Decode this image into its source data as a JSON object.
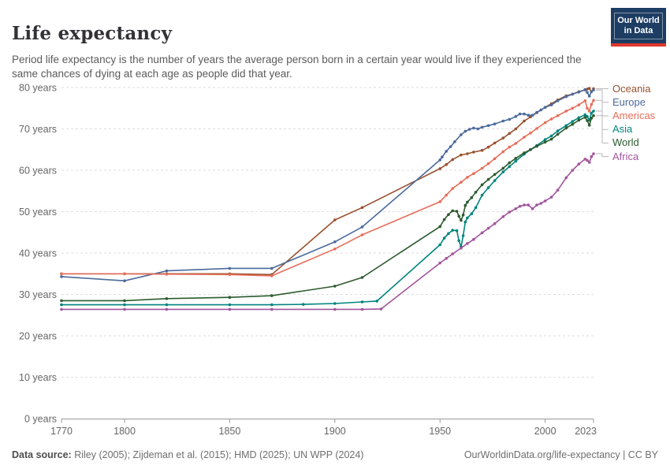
{
  "header": {
    "title": "Life expectancy",
    "subtitle": "Period life expectancy is the number of years the average person born in a certain year would live if they experienced the same chances of dying at each age as people did that year.",
    "logo": {
      "line1": "Our World",
      "line2": "in Data",
      "bg_color": "#1d3d63",
      "bar_color": "#e0362c"
    }
  },
  "footer": {
    "datasource_label": "Data source:",
    "datasource_value": " Riley (2005); Zijdeman et al. (2015); HMD (2025); UN WPP (2024)",
    "link": "OurWorldinData.org/life-expectancy | CC BY"
  },
  "chart_data": {
    "type": "line",
    "title": "Life expectancy",
    "xlabel": "",
    "ylabel": "",
    "x_range": [
      1770,
      2023
    ],
    "y_range": [
      0,
      80
    ],
    "x_ticks": [
      1770,
      1800,
      1850,
      1900,
      1950,
      2000,
      2023
    ],
    "y_ticks": [
      0,
      10,
      20,
      30,
      40,
      50,
      60,
      70,
      80
    ],
    "y_tick_suffix": " years",
    "grid": "horizontal-dashed",
    "legend_position": "right",
    "colors": {
      "grid": "#dddddd",
      "axis": "#999999",
      "tick_label": "#666666",
      "legend_connector": "#b8b8b8"
    },
    "series": [
      {
        "name": "Oceania",
        "color": "#98512F",
        "points": [
          [
            1770,
            35.0
          ],
          [
            1800,
            35.0
          ],
          [
            1820,
            35.0
          ],
          [
            1850,
            35.0
          ],
          [
            1870,
            34.8
          ],
          [
            1900,
            48.0
          ],
          [
            1913,
            51.0
          ],
          [
            1950,
            60.4
          ],
          [
            1953,
            61.4
          ],
          [
            1956,
            62.6
          ],
          [
            1960,
            63.7
          ],
          [
            1963,
            64.0
          ],
          [
            1966,
            64.4
          ],
          [
            1970,
            64.8
          ],
          [
            1973,
            65.6
          ],
          [
            1976,
            66.6
          ],
          [
            1980,
            67.8
          ],
          [
            1983,
            68.9
          ],
          [
            1986,
            70.0
          ],
          [
            1990,
            71.9
          ],
          [
            1993,
            72.9
          ],
          [
            1996,
            73.9
          ],
          [
            2000,
            75.2
          ],
          [
            2003,
            76.1
          ],
          [
            2006,
            77.0
          ],
          [
            2010,
            78.0
          ],
          [
            2013,
            78.4
          ],
          [
            2016,
            79.0
          ],
          [
            2019,
            79.4
          ],
          [
            2020,
            79.6
          ],
          [
            2021,
            79.8
          ],
          [
            2022,
            79.0
          ],
          [
            2023,
            79.7
          ]
        ]
      },
      {
        "name": "Europe",
        "color": "#4C6A9C",
        "points": [
          [
            1770,
            34.3
          ],
          [
            1800,
            33.3
          ],
          [
            1820,
            35.7
          ],
          [
            1850,
            36.3
          ],
          [
            1870,
            36.3
          ],
          [
            1900,
            42.7
          ],
          [
            1913,
            46.3
          ],
          [
            1950,
            62.5
          ],
          [
            1951,
            63.2
          ],
          [
            1953,
            64.6
          ],
          [
            1955,
            65.7
          ],
          [
            1957,
            66.9
          ],
          [
            1960,
            68.6
          ],
          [
            1962,
            69.4
          ],
          [
            1964,
            69.9
          ],
          [
            1966,
            70.2
          ],
          [
            1968,
            70.0
          ],
          [
            1970,
            70.4
          ],
          [
            1973,
            70.8
          ],
          [
            1976,
            71.2
          ],
          [
            1980,
            71.9
          ],
          [
            1983,
            72.3
          ],
          [
            1986,
            73.0
          ],
          [
            1988,
            73.6
          ],
          [
            1990,
            73.6
          ],
          [
            1992,
            73.3
          ],
          [
            1994,
            73.3
          ],
          [
            1996,
            74.0
          ],
          [
            1998,
            74.6
          ],
          [
            2000,
            75.2
          ],
          [
            2003,
            75.8
          ],
          [
            2006,
            76.8
          ],
          [
            2010,
            77.8
          ],
          [
            2013,
            78.4
          ],
          [
            2016,
            78.9
          ],
          [
            2019,
            79.5
          ],
          [
            2020,
            78.8
          ],
          [
            2021,
            77.9
          ],
          [
            2022,
            79.0
          ],
          [
            2023,
            79.4
          ]
        ]
      },
      {
        "name": "Americas",
        "color": "#E56E5A",
        "points": [
          [
            1770,
            35.0
          ],
          [
            1800,
            35.0
          ],
          [
            1820,
            34.9
          ],
          [
            1850,
            34.8
          ],
          [
            1870,
            34.5
          ],
          [
            1900,
            41.0
          ],
          [
            1913,
            44.4
          ],
          [
            1950,
            52.4
          ],
          [
            1953,
            54.0
          ],
          [
            1956,
            55.6
          ],
          [
            1960,
            57.1
          ],
          [
            1963,
            58.3
          ],
          [
            1966,
            59.2
          ],
          [
            1970,
            60.5
          ],
          [
            1973,
            61.6
          ],
          [
            1976,
            62.8
          ],
          [
            1980,
            64.5
          ],
          [
            1983,
            65.6
          ],
          [
            1986,
            66.5
          ],
          [
            1990,
            68.0
          ],
          [
            1993,
            69.0
          ],
          [
            1996,
            70.1
          ],
          [
            2000,
            71.5
          ],
          [
            2003,
            72.4
          ],
          [
            2006,
            73.2
          ],
          [
            2010,
            74.3
          ],
          [
            2013,
            75.0
          ],
          [
            2016,
            75.8
          ],
          [
            2019,
            76.8
          ],
          [
            2020,
            75.0
          ],
          [
            2021,
            74.3
          ],
          [
            2022,
            75.9
          ],
          [
            2023,
            76.9
          ]
        ]
      },
      {
        "name": "Asia",
        "color": "#00847E",
        "points": [
          [
            1770,
            27.5
          ],
          [
            1800,
            27.5
          ],
          [
            1820,
            27.5
          ],
          [
            1850,
            27.5
          ],
          [
            1870,
            27.5
          ],
          [
            1885,
            27.6
          ],
          [
            1900,
            27.8
          ],
          [
            1913,
            28.2
          ],
          [
            1920,
            28.4
          ],
          [
            1950,
            42.0
          ],
          [
            1952,
            43.6
          ],
          [
            1954,
            44.7
          ],
          [
            1956,
            45.5
          ],
          [
            1958,
            45.4
          ],
          [
            1959,
            43.0
          ],
          [
            1960,
            41.5
          ],
          [
            1961,
            44.2
          ],
          [
            1962,
            47.5
          ],
          [
            1963,
            48.5
          ],
          [
            1965,
            49.5
          ],
          [
            1967,
            51.0
          ],
          [
            1970,
            54.0
          ],
          [
            1973,
            55.8
          ],
          [
            1976,
            57.5
          ],
          [
            1980,
            59.6
          ],
          [
            1983,
            60.9
          ],
          [
            1986,
            62.2
          ],
          [
            1990,
            63.9
          ],
          [
            1993,
            65.0
          ],
          [
            1996,
            66.0
          ],
          [
            2000,
            67.4
          ],
          [
            2003,
            68.3
          ],
          [
            2006,
            69.5
          ],
          [
            2010,
            70.8
          ],
          [
            2013,
            71.8
          ],
          [
            2016,
            72.7
          ],
          [
            2019,
            73.4
          ],
          [
            2020,
            73.0
          ],
          [
            2021,
            72.1
          ],
          [
            2022,
            73.8
          ],
          [
            2023,
            74.3
          ]
        ]
      },
      {
        "name": "World",
        "color": "#2C5A2E",
        "points": [
          [
            1770,
            28.5
          ],
          [
            1800,
            28.5
          ],
          [
            1820,
            29.0
          ],
          [
            1850,
            29.3
          ],
          [
            1870,
            29.7
          ],
          [
            1900,
            32.0
          ],
          [
            1913,
            34.1
          ],
          [
            1950,
            46.4
          ],
          [
            1952,
            48.1
          ],
          [
            1954,
            49.3
          ],
          [
            1956,
            50.2
          ],
          [
            1958,
            50.1
          ],
          [
            1959,
            48.9
          ],
          [
            1960,
            47.9
          ],
          [
            1961,
            49.2
          ],
          [
            1962,
            51.5
          ],
          [
            1963,
            52.3
          ],
          [
            1965,
            53.4
          ],
          [
            1967,
            54.7
          ],
          [
            1970,
            56.5
          ],
          [
            1973,
            57.8
          ],
          [
            1976,
            59.0
          ],
          [
            1980,
            60.5
          ],
          [
            1983,
            61.8
          ],
          [
            1986,
            62.9
          ],
          [
            1990,
            64.2
          ],
          [
            1993,
            65.0
          ],
          [
            1996,
            65.8
          ],
          [
            2000,
            66.8
          ],
          [
            2003,
            67.5
          ],
          [
            2006,
            68.7
          ],
          [
            2010,
            70.2
          ],
          [
            2013,
            71.1
          ],
          [
            2016,
            72.1
          ],
          [
            2019,
            72.8
          ],
          [
            2020,
            72.0
          ],
          [
            2021,
            70.9
          ],
          [
            2022,
            72.6
          ],
          [
            2023,
            73.2
          ]
        ]
      },
      {
        "name": "Africa",
        "color": "#A2559C",
        "points": [
          [
            1770,
            26.4
          ],
          [
            1800,
            26.4
          ],
          [
            1820,
            26.4
          ],
          [
            1850,
            26.4
          ],
          [
            1870,
            26.4
          ],
          [
            1900,
            26.4
          ],
          [
            1913,
            26.4
          ],
          [
            1922,
            26.5
          ],
          [
            1950,
            37.6
          ],
          [
            1953,
            38.7
          ],
          [
            1956,
            39.8
          ],
          [
            1960,
            41.2
          ],
          [
            1963,
            42.3
          ],
          [
            1966,
            43.3
          ],
          [
            1970,
            44.9
          ],
          [
            1973,
            46.0
          ],
          [
            1976,
            47.1
          ],
          [
            1980,
            48.8
          ],
          [
            1983,
            49.9
          ],
          [
            1986,
            50.7
          ],
          [
            1988,
            51.3
          ],
          [
            1990,
            51.6
          ],
          [
            1992,
            51.6
          ],
          [
            1994,
            50.7
          ],
          [
            1996,
            51.6
          ],
          [
            1998,
            52.0
          ],
          [
            2000,
            52.6
          ],
          [
            2003,
            53.5
          ],
          [
            2006,
            55.2
          ],
          [
            2010,
            58.2
          ],
          [
            2013,
            60.0
          ],
          [
            2016,
            61.5
          ],
          [
            2019,
            62.7
          ],
          [
            2020,
            62.4
          ],
          [
            2021,
            61.9
          ],
          [
            2022,
            63.3
          ],
          [
            2023,
            64.0
          ]
        ]
      }
    ]
  }
}
